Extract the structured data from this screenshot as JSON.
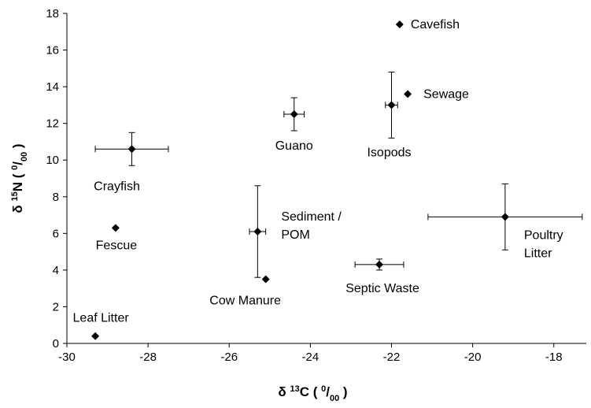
{
  "chart_data": {
    "type": "scatter",
    "x_label": [
      "δ ",
      "13",
      "C  ( ",
      "0",
      "/",
      "00",
      " )"
    ],
    "y_label": [
      "δ ",
      "15",
      "N  ( ",
      "0",
      "/",
      "00",
      " )"
    ],
    "xlim": [
      -30,
      -17.2
    ],
    "xticks": [
      -30,
      -28,
      -26,
      -24,
      -22,
      -20,
      -18
    ],
    "ylim": [
      0,
      18
    ],
    "yticks": [
      0,
      2,
      4,
      6,
      8,
      10,
      12,
      14,
      16,
      18
    ],
    "color": "#000000",
    "points": [
      {
        "label": [
          "Cavefish"
        ],
        "x": -21.8,
        "y": 17.4
      },
      {
        "label": [
          "Sewage"
        ],
        "x": -21.6,
        "y": 13.6
      },
      {
        "label": [
          "Isopods"
        ],
        "x": -22.0,
        "y": 13.0,
        "xerr": 0.15,
        "yerr": 1.8
      },
      {
        "label": [
          "Guano"
        ],
        "x": -24.4,
        "y": 12.5,
        "xerr": 0.25,
        "yerr": 0.9
      },
      {
        "label": [
          "Crayfish"
        ],
        "x": -28.4,
        "y": 10.6,
        "xerr": 0.9,
        "yerr": 0.9
      },
      {
        "label": [
          "Fescue"
        ],
        "x": -28.8,
        "y": 6.3
      },
      {
        "label": [
          "Sediment /",
          "POM"
        ],
        "x": -25.3,
        "y": 6.1,
        "xerr": 0.2,
        "yerr": 2.5
      },
      {
        "label": [
          "Cow Manure"
        ],
        "x": -25.1,
        "y": 3.5
      },
      {
        "label": [
          "Septic Waste"
        ],
        "x": -22.3,
        "y": 4.3,
        "xerr": 0.6,
        "yerr": 0.3
      },
      {
        "label": [
          "Poultry",
          "Litter"
        ],
        "x": -19.2,
        "y": 6.9,
        "xerr": 1.9,
        "yerr": 1.8
      },
      {
        "label": [
          "Leaf Litter"
        ],
        "x": -29.3,
        "y": 0.4
      }
    ]
  }
}
